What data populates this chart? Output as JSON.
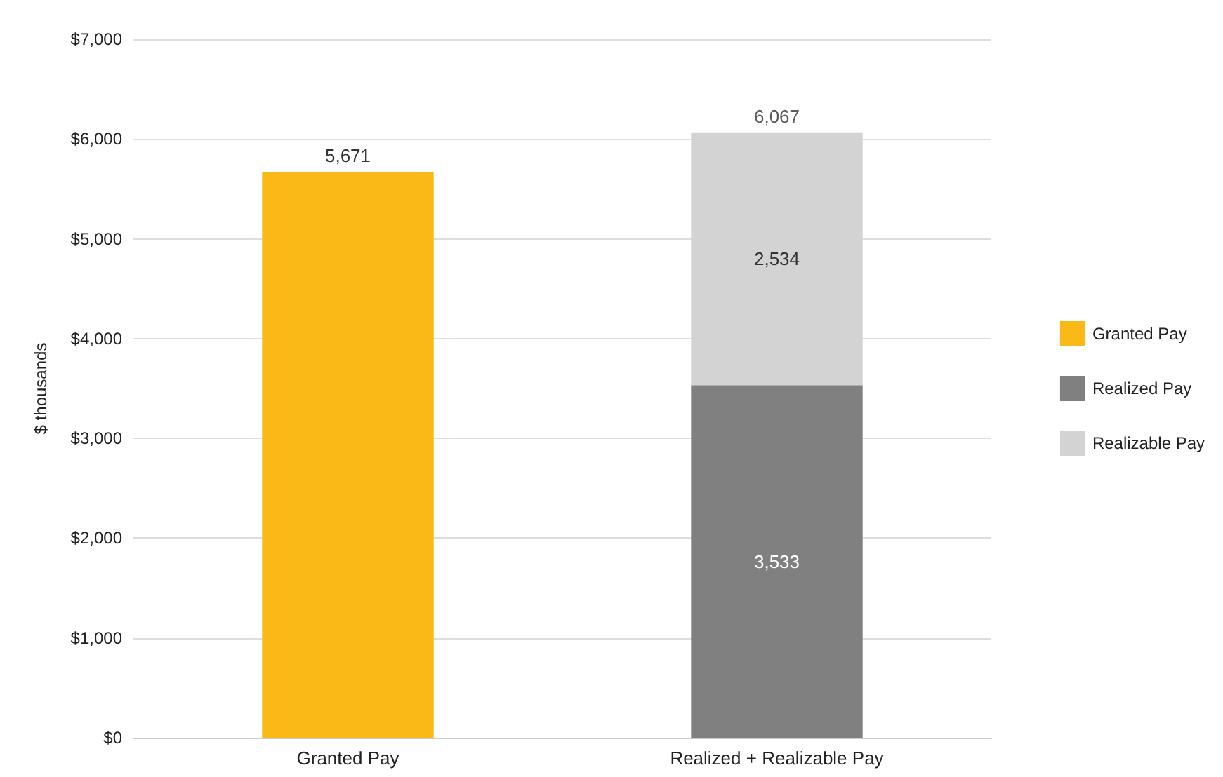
{
  "chart_data": {
    "type": "bar",
    "stacked": true,
    "ylabel": "$ thousands",
    "categories": [
      "Granted Pay",
      "Realized + Realizable Pay"
    ],
    "series": [
      {
        "name": "Granted Pay",
        "color": "#fbb917",
        "values": [
          5671,
          null
        ],
        "value_labels": [
          "5,671",
          null
        ]
      },
      {
        "name": "Realized Pay",
        "color": "#808080",
        "values": [
          null,
          3533
        ],
        "value_labels": [
          null,
          "3,533"
        ]
      },
      {
        "name": "Realizable Pay",
        "color": "#d3d3d3",
        "values": [
          null,
          2534
        ],
        "value_labels": [
          null,
          "2,534"
        ]
      }
    ],
    "totals": [
      null,
      "6,067"
    ],
    "ylim": [
      0,
      7000
    ],
    "yticks": [
      {
        "value": 0,
        "label": "$0"
      },
      {
        "value": 1000,
        "label": "$1,000"
      },
      {
        "value": 2000,
        "label": "$2,000"
      },
      {
        "value": 3000,
        "label": "$3,000"
      },
      {
        "value": 4000,
        "label": "$4,000"
      },
      {
        "value": 5000,
        "label": "$5,000"
      },
      {
        "value": 6000,
        "label": "$6,000"
      },
      {
        "value": 7000,
        "label": "$7,000"
      }
    ],
    "grid": "y",
    "legend": "right"
  }
}
